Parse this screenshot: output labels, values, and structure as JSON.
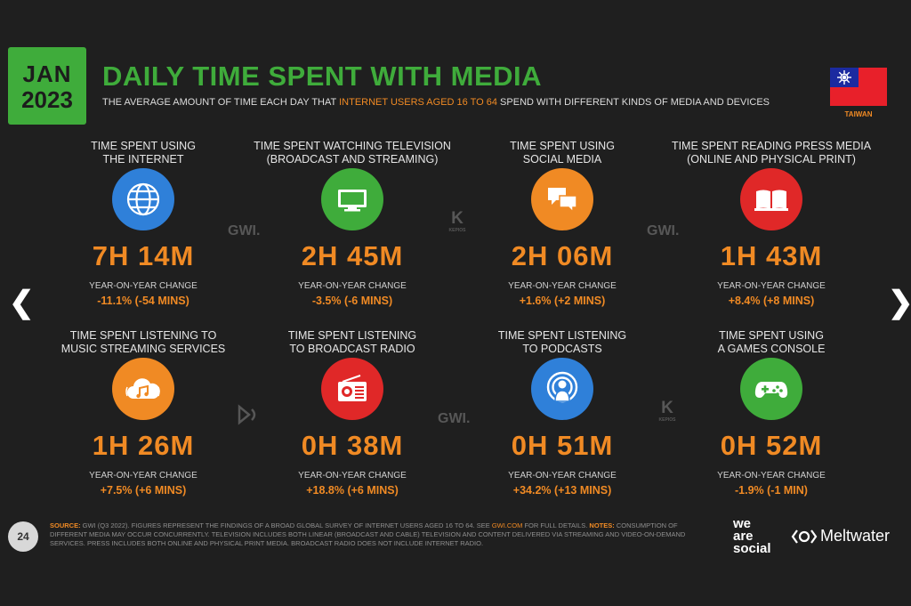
{
  "header": {
    "month": "JAN",
    "year": "2023",
    "title": "DAILY TIME SPENT WITH MEDIA",
    "subtitle_pre": "THE AVERAGE AMOUNT OF TIME EACH DAY THAT ",
    "subtitle_highlight": "INTERNET USERS AGED 16 TO 64",
    "subtitle_post": " SPEND WITH DIFFERENT KINDS OF MEDIA AND DEVICES",
    "country": "TAIWAN"
  },
  "nav": {
    "prev": "❮",
    "next": "❯"
  },
  "yoy_label": "YEAR-ON-YEAR CHANGE",
  "cards": [
    {
      "label": "TIME SPENT USING\nTHE INTERNET",
      "value": "7H 14M",
      "change": "-11.1% (-54 MINS)",
      "icon": "globe-icon",
      "color": "#2f80d9"
    },
    {
      "label": "TIME SPENT WATCHING TELEVISION\n(BROADCAST AND STREAMING)",
      "value": "2H 45M",
      "change": "-3.5% (-6 MINS)",
      "icon": "tv-icon",
      "color": "#3fac3b"
    },
    {
      "label": "TIME SPENT USING\nSOCIAL MEDIA",
      "value": "2H 06M",
      "change": "+1.6% (+2 MINS)",
      "icon": "chat-icon",
      "color": "#f08a24"
    },
    {
      "label": "TIME SPENT READING PRESS MEDIA\n(ONLINE AND PHYSICAL PRINT)",
      "value": "1H 43M",
      "change": "+8.4% (+8 MINS)",
      "icon": "book-icon",
      "color": "#e02828"
    },
    {
      "label": "TIME SPENT LISTENING TO\nMUSIC STREAMING SERVICES",
      "value": "1H 26M",
      "change": "+7.5% (+6 MINS)",
      "icon": "music-cloud-icon",
      "color": "#f08a24"
    },
    {
      "label": "TIME SPENT LISTENING\nTO BROADCAST RADIO",
      "value": "0H 38M",
      "change": "+18.8% (+6 MINS)",
      "icon": "radio-icon",
      "color": "#e02828"
    },
    {
      "label": "TIME SPENT LISTENING\nTO PODCASTS",
      "value": "0H 51M",
      "change": "+34.2% (+13 MINS)",
      "icon": "podcast-icon",
      "color": "#2f80d9"
    },
    {
      "label": "TIME SPENT USING\nA GAMES CONSOLE",
      "value": "0H 52M",
      "change": "-1.9% (-1 MIN)",
      "icon": "gamepad-icon",
      "color": "#3fac3b"
    }
  ],
  "watermarks": {
    "gwi": "GWI.",
    "kepios": "KEPIOS",
    "kepios_k": "K"
  },
  "footer": {
    "page": "24",
    "source_key": "SOURCE:",
    "source_text": " GWI (Q3 2022). FIGURES REPRESENT THE FINDINGS OF A BROAD GLOBAL SURVEY OF INTERNET USERS AGED 16 TO 64. SEE ",
    "source_link": "GWI.COM",
    "source_text2": " FOR FULL DETAILS. ",
    "notes_key": "NOTES:",
    "notes_text": " CONSUMPTION OF DIFFERENT MEDIA MAY OCCUR CONCURRENTLY. TELEVISION INCLUDES BOTH LINEAR (BROADCAST AND CABLE) TELEVISION AND CONTENT DELIVERED VIA STREAMING AND VIDEO-ON-DEMAND SERVICES. PRESS INCLUDES BOTH ONLINE AND PHYSICAL PRINT MEDIA. BROADCAST RADIO DOES NOT INCLUDE INTERNET RADIO.",
    "we_are_social": [
      "we",
      "are",
      "social"
    ],
    "meltwater": "Meltwater"
  }
}
